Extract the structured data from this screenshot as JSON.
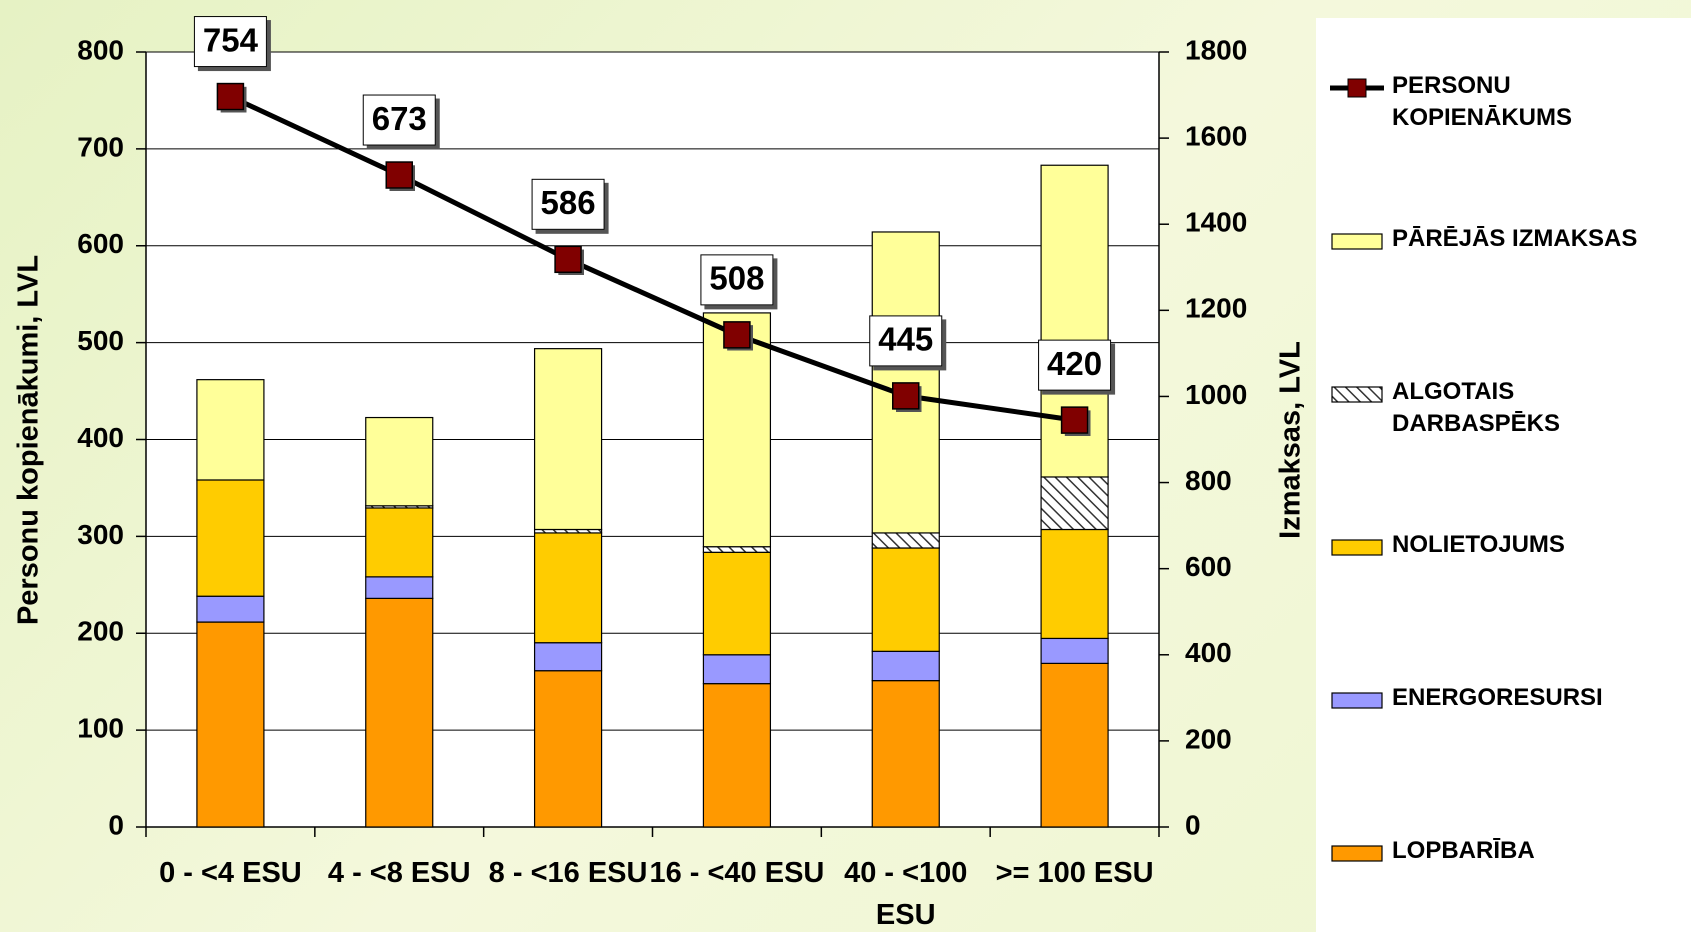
{
  "chart_data": {
    "type": "bar",
    "stacked": true,
    "categories": [
      "0 - <4 ESU",
      "4 - <8  ESU",
      "8 - <16 ESU",
      "16 - <40 ESU",
      "40 - <100 ESU",
      ">= 100 ESU"
    ],
    "y_label": "Personu kopienākumi, LVL",
    "y2_label": "Izmaksas, LVL",
    "ylim": [
      0,
      800
    ],
    "yticks": [
      0,
      100,
      200,
      300,
      400,
      500,
      600,
      700,
      800
    ],
    "y2lim": [
      0,
      1800
    ],
    "y2ticks": [
      0,
      200,
      400,
      600,
      800,
      1000,
      1200,
      1400,
      1600,
      1800
    ],
    "grid": true,
    "legend": "right",
    "series": [
      {
        "name": "LOPBARĪBA",
        "color": "#ff9900",
        "axis": "y2",
        "values": [
          476,
          531,
          363,
          333,
          340,
          380
        ]
      },
      {
        "name": "ENERGORESURSI",
        "color": "#9999ff",
        "axis": "y2",
        "values": [
          60,
          50,
          65,
          67,
          68,
          58
        ]
      },
      {
        "name": "NOLIETOJUMS",
        "color": "#ffcc00",
        "axis": "y2",
        "values": [
          270,
          160,
          255,
          238,
          240,
          253
        ]
      },
      {
        "name": "ALGOTAIS DARBASPĒKS",
        "color": "hatch",
        "axis": "y2",
        "values": [
          0,
          5,
          8,
          13,
          35,
          122
        ]
      },
      {
        "name": "PĀRĒJĀS IZMAKSAS",
        "color": "#ffff99",
        "axis": "y2",
        "values": [
          233,
          205,
          420,
          543,
          699,
          724
        ]
      },
      {
        "name": "PERSONU KOPIENĀKUMS",
        "color": "#800000",
        "type": "line",
        "axis": "y",
        "values": [
          754,
          673,
          586,
          508,
          445,
          420
        ]
      }
    ]
  }
}
